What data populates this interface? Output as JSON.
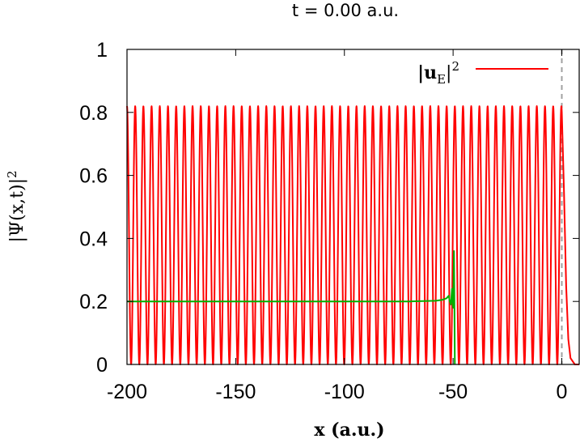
{
  "chart_data": {
    "type": "line",
    "title": "t =  0.00 a.u.",
    "xlabel": "x (a.u.)",
    "ylabel": "|Ψ(x,t)|",
    "ylabel_sup": "2",
    "xlim": [
      -200,
      8
    ],
    "ylim": [
      0,
      1
    ],
    "x_ticks": [
      -200,
      -150,
      -100,
      -50,
      0
    ],
    "x_tick_labels": [
      "-200",
      "-150",
      "-100",
      "-50",
      "0"
    ],
    "y_ticks": [
      0,
      0.2,
      0.4,
      0.6,
      0.8,
      1
    ],
    "y_tick_labels": [
      "0",
      "0.2",
      "0.4",
      "0.6",
      "0.8",
      "1"
    ],
    "legend": {
      "placement": "top-right",
      "label_base": "|u",
      "label_sub": "E",
      "label_close": "|",
      "label_sup": "2"
    },
    "vertical_marker": {
      "x": 0,
      "style": "dashed",
      "color": "#a0a0a0"
    },
    "series": [
      {
        "name": "|uE|^2",
        "color": "#ff0000",
        "kind": "oscillation",
        "x_start": -200,
        "x_end": 0,
        "period": 3.77,
        "min": 0.0,
        "max": 0.82,
        "tail": [
          [
            0,
            0.8
          ],
          [
            1,
            0.55
          ],
          [
            2,
            0.25
          ],
          [
            3,
            0.08
          ],
          [
            4,
            0.02
          ],
          [
            6,
            0.0
          ],
          [
            8,
            0.0
          ]
        ]
      },
      {
        "color": "#00b000",
        "kind": "packet",
        "points": [
          [
            -200,
            0.2
          ],
          [
            -100,
            0.2
          ],
          [
            -70,
            0.2
          ],
          [
            -58,
            0.202
          ],
          [
            -55,
            0.205
          ],
          [
            -53,
            0.21
          ],
          [
            -52,
            0.218
          ],
          [
            -51.5,
            0.2
          ],
          [
            -51,
            0.19
          ],
          [
            -50.5,
            0.24
          ],
          [
            -50,
            0.18
          ],
          [
            -49.6,
            0.36
          ],
          [
            -49.4,
            0.2
          ],
          [
            -49.2,
            0.0
          ]
        ]
      }
    ]
  }
}
